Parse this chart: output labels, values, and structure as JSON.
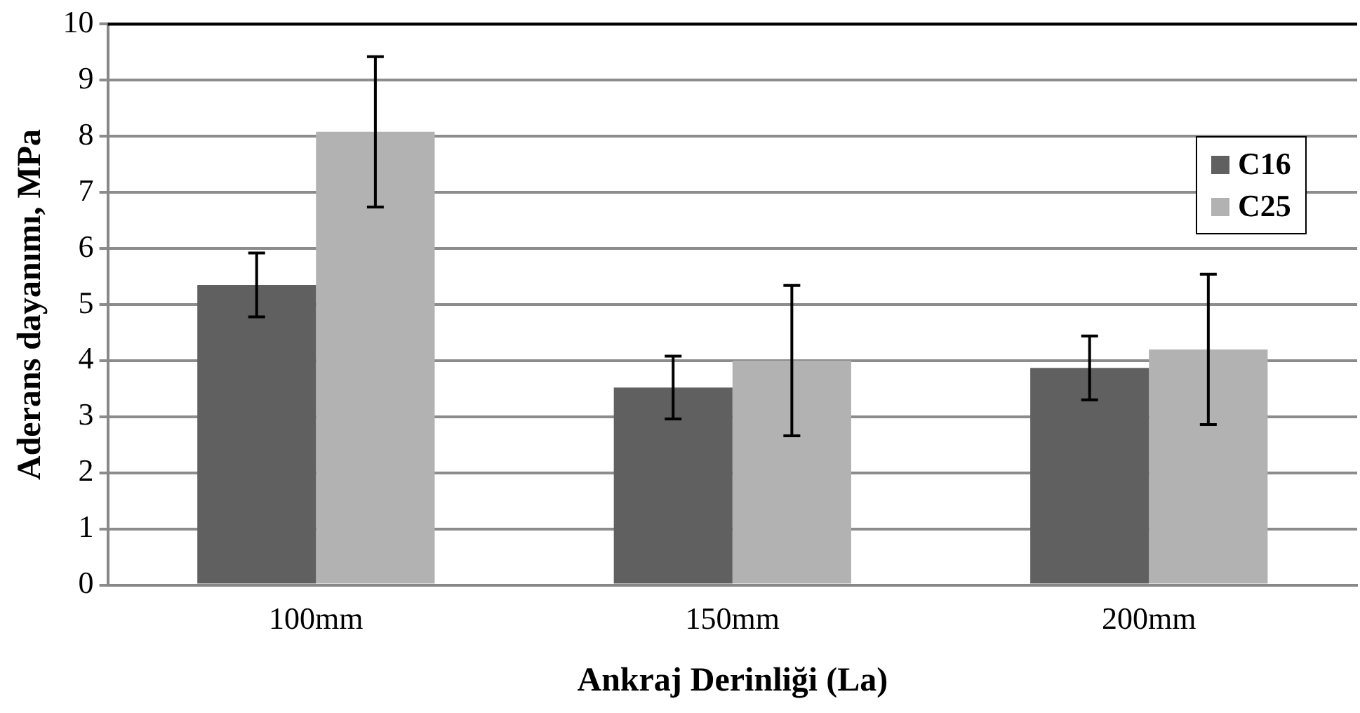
{
  "chart_data": {
    "type": "bar",
    "xlabel": "Ankraj Derinliği (La)",
    "ylabel": "Aderans dayanımı, MPa",
    "categories": [
      "100mm",
      "150mm",
      "200mm"
    ],
    "series": [
      {
        "name": "C16",
        "color": "#606060",
        "values": [
          5.35,
          3.52,
          3.87
        ],
        "errors": [
          0.57,
          0.56,
          0.57
        ]
      },
      {
        "name": "C25",
        "color": "#b2b2b2",
        "values": [
          8.08,
          4.0,
          4.2
        ],
        "errors": [
          1.34,
          1.34,
          1.34
        ]
      }
    ],
    "ylim": [
      0,
      10
    ],
    "yticks": [
      0,
      1,
      2,
      3,
      4,
      5,
      6,
      7,
      8,
      9,
      10
    ],
    "grid": "y",
    "legend": "top right"
  }
}
